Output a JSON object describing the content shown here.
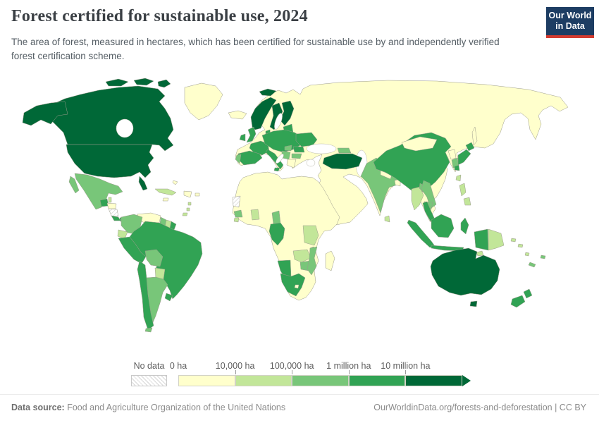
{
  "header": {
    "title": "Forest certified for sustainable use, 2024",
    "subtitle": "The area of forest, measured in hectares, which has been certified for sustainable use by and independently verified forest certification scheme.",
    "logo": {
      "line1": "Our World",
      "line2": "in Data",
      "bg": "#1d3d63",
      "accent": "#d43b2f"
    }
  },
  "legend": {
    "no_data_label": "No data",
    "ticks": [
      "0 ha",
      "10,000 ha",
      "100,000 ha",
      "1 million ha",
      "10 million ha"
    ],
    "colors": [
      "#ffffcc",
      "#c2e699",
      "#78c679",
      "#31a354",
      "#006837"
    ]
  },
  "footer": {
    "datasource_label": "Data source:",
    "datasource": " Food and Agriculture Organization of the United Nations",
    "link": "OurWorldinData.org/forests-and-deforestation | CC BY"
  },
  "chart_data": {
    "type": "heatmap",
    "subtype": "choropleth-world-map",
    "title": "Forest certified for sustainable use, 2024",
    "unit": "hectares",
    "year": 2024,
    "legend_position": "bottom",
    "legend_ticks": [
      "0 ha",
      "10,000 ha",
      "100,000 ha",
      "1 million ha",
      "10 million ha"
    ],
    "bins": [
      {
        "range": "0 – 10,000 ha",
        "color": "#ffffcc"
      },
      {
        "range": "10,000 – 100,000 ha",
        "color": "#c2e699"
      },
      {
        "range": "100,000 – 1 million ha",
        "color": "#78c679"
      },
      {
        "range": "1 – 10 million ha",
        "color": "#31a354"
      },
      {
        "range": "10+ million ha",
        "color": "#006837"
      }
    ],
    "no_data_color": "hatch",
    "regions": {
      "eurasia-base": 0,
      "africa-base": 0,
      "greenland": 0,
      "iceland": 0,
      "canada": 4,
      "usa": 4,
      "mexico": 2,
      "guatemala": 3,
      "belize": 1,
      "honduras": 0,
      "nicaragua": "nodata",
      "costa-rica": 3,
      "panama": 3,
      "cuba": 1,
      "hispaniola": 0,
      "jamaica": 0,
      "puerto-rico": 0,
      "bahamas": 0,
      "lesser-antilles": 1,
      "trinidad": 1,
      "colombia": 2,
      "venezuela": 0,
      "guyana": 2,
      "suriname": 1,
      "french-guiana": 3,
      "ecuador": 1,
      "peru": 3,
      "brazil": 3,
      "bolivia": 2,
      "paraguay": 1,
      "chile": 3,
      "argentina": 2,
      "uruguay": 3,
      "tierra-del-fuego": 2,
      "svalbard": 4,
      "norway": 4,
      "sweden": 4,
      "finland": 4,
      "denmark": 3,
      "baltics": 3,
      "uk": 3,
      "ireland": 3,
      "france": 3,
      "iberia": 3,
      "portugal": 2,
      "central-europe": 3,
      "ukraine": 3,
      "hungary": 2,
      "romania": 3,
      "balkans": 2,
      "bulgaria": 2,
      "greece": 0,
      "italy": 3,
      "sicily": 3,
      "turkey": 4,
      "caucasus": 2,
      "western-sahara": "nodata",
      "guinea": 2,
      "sierra-leone": 1,
      "ghana": 1,
      "cameroon": 2,
      "gabon-congo": 3,
      "tanzania": 1,
      "malawi": 2,
      "zambia": 1,
      "zimbabwe": 2,
      "mozambique": 2,
      "namibia": 3,
      "south-africa": 3,
      "lesotho": 0,
      "madagascar": 0,
      "india": 2,
      "nepal": 0,
      "bangladesh": 0,
      "sri-lanka": 1,
      "china": 3,
      "mongolia": 0,
      "north-korea": 0,
      "south-korea": 2,
      "japan": 3,
      "sakhalin": 0,
      "taiwan": 1,
      "philippines": 1,
      "thailand": 1,
      "laos": 2,
      "vietnam": 2,
      "cambodia": 2,
      "malaysia": 3,
      "indonesia": 3,
      "timor": 1,
      "new-guinea-west": 3,
      "png": 1,
      "solomon": 1,
      "vanuatu": 1,
      "fiji": 2,
      "new-caledonia": 2,
      "australia": 4,
      "tasmania": 4,
      "new-zealand": 3
    }
  }
}
